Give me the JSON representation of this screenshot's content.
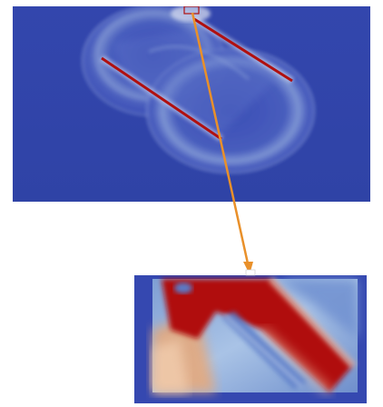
{
  "image": {
    "description_kind": "simulation-field-visualization",
    "panels": [
      {
        "role": "overview"
      },
      {
        "role": "zoom-inset"
      }
    ],
    "colors": {
      "background": "#3247a8",
      "field_low": "#3648b3",
      "field_mid": "#8aa5d6",
      "field_high": "#b01010",
      "arrow": "#e9902a"
    }
  }
}
